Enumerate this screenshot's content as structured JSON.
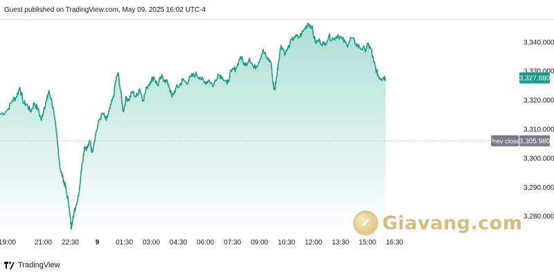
{
  "header": {
    "published": "Guest published on TradingView.com, May 09, 2025 16:02 UTC-4"
  },
  "footer": {
    "brand": "TradingView"
  },
  "watermark": {
    "text": "Giavang.com"
  },
  "colors": {
    "line": "#1a9a8a",
    "fill_top": "#9fd9cd",
    "fill_bottom": "#ffffff",
    "current_label_bg": "#1a9a8a",
    "prev_close_label_bg": "#787b86",
    "prev_close_line": "#b2b5be",
    "axis_text": "#131722"
  },
  "chart_data": {
    "type": "area",
    "title": "",
    "xlabel": "",
    "ylabel": "",
    "ylim": [
      3273.6,
      3347.6
    ],
    "y_ticks": [
      3280,
      3290,
      3300,
      3310,
      3320,
      3330,
      3340
    ],
    "y_tick_labels": [
      "3,280.000",
      "3,290.000",
      "3,300.000",
      "3,310.000",
      "3,320.000",
      "3,330.000",
      "3,340.000"
    ],
    "x_range_hours": [
      -5.4,
      22.2
    ],
    "x_ticks": [
      {
        "label": "19:00",
        "hour": -5
      },
      {
        "label": "21:00",
        "hour": -3
      },
      {
        "label": "22:30",
        "hour": -1.5
      },
      {
        "label": "9",
        "hour": 0
      },
      {
        "label": "01:30",
        "hour": 1.5
      },
      {
        "label": "03:00",
        "hour": 3
      },
      {
        "label": "04:30",
        "hour": 4.5
      },
      {
        "label": "06:00",
        "hour": 6
      },
      {
        "label": "07:30",
        "hour": 7.5
      },
      {
        "label": "09:00",
        "hour": 9
      },
      {
        "label": "10:30",
        "hour": 10.5
      },
      {
        "label": "12:00",
        "hour": 12
      },
      {
        "label": "13:30",
        "hour": 13.5
      },
      {
        "label": "15:00",
        "hour": 15
      },
      {
        "label": "16:30",
        "hour": 16.5
      }
    ],
    "series": [
      {
        "name": "",
        "points": [
          [
            -5.4,
            3315.0
          ],
          [
            -5.0,
            3316.5
          ],
          [
            -4.7,
            3320.0
          ],
          [
            -4.5,
            3321.0
          ],
          [
            -4.3,
            3324.5
          ],
          [
            -4.1,
            3319.0
          ],
          [
            -3.9,
            3318.5
          ],
          [
            -3.7,
            3316.0
          ],
          [
            -3.5,
            3319.0
          ],
          [
            -3.3,
            3317.0
          ],
          [
            -3.1,
            3313.0
          ],
          [
            -2.95,
            3317.5
          ],
          [
            -2.8,
            3320.0
          ],
          [
            -2.7,
            3323.0
          ],
          [
            -2.55,
            3320.5
          ],
          [
            -2.4,
            3315.0
          ],
          [
            -2.2,
            3305.0
          ],
          [
            -2.05,
            3296.0
          ],
          [
            -1.9,
            3293.0
          ],
          [
            -1.8,
            3291.0
          ],
          [
            -1.7,
            3288.0
          ],
          [
            -1.55,
            3283.0
          ],
          [
            -1.45,
            3275.5
          ],
          [
            -1.35,
            3280.0
          ],
          [
            -1.2,
            3283.0
          ],
          [
            -1.0,
            3289.0
          ],
          [
            -0.85,
            3298.0
          ],
          [
            -0.7,
            3304.0
          ],
          [
            -0.55,
            3303.5
          ],
          [
            -0.4,
            3306.0
          ],
          [
            -0.3,
            3302.0
          ],
          [
            -0.1,
            3308.0
          ],
          [
            0.1,
            3313.0
          ],
          [
            0.3,
            3315.5
          ],
          [
            0.5,
            3313.0
          ],
          [
            0.7,
            3317.0
          ],
          [
            0.9,
            3321.0
          ],
          [
            1.0,
            3326.0
          ],
          [
            1.15,
            3329.5
          ],
          [
            1.3,
            3323.0
          ],
          [
            1.45,
            3316.0
          ],
          [
            1.6,
            3321.0
          ],
          [
            1.75,
            3320.0
          ],
          [
            1.95,
            3323.0
          ],
          [
            2.15,
            3321.0
          ],
          [
            2.35,
            3324.0
          ],
          [
            2.55,
            3320.0
          ],
          [
            2.75,
            3324.5
          ],
          [
            2.95,
            3326.5
          ],
          [
            3.15,
            3328.0
          ],
          [
            3.35,
            3325.0
          ],
          [
            3.55,
            3328.0
          ],
          [
            3.75,
            3327.0
          ],
          [
            3.95,
            3325.5
          ],
          [
            4.15,
            3321.0
          ],
          [
            4.35,
            3324.0
          ],
          [
            4.55,
            3325.0
          ],
          [
            4.75,
            3327.0
          ],
          [
            4.95,
            3326.0
          ],
          [
            5.2,
            3328.0
          ],
          [
            5.45,
            3329.0
          ],
          [
            5.7,
            3328.0
          ],
          [
            5.95,
            3326.0
          ],
          [
            6.2,
            3327.0
          ],
          [
            6.45,
            3325.0
          ],
          [
            6.7,
            3329.0
          ],
          [
            6.95,
            3328.0
          ],
          [
            7.2,
            3325.5
          ],
          [
            7.45,
            3330.0
          ],
          [
            7.7,
            3331.0
          ],
          [
            7.95,
            3335.0
          ],
          [
            8.2,
            3332.0
          ],
          [
            8.45,
            3334.5
          ],
          [
            8.7,
            3331.0
          ],
          [
            8.95,
            3333.0
          ],
          [
            9.2,
            3337.5
          ],
          [
            9.45,
            3334.0
          ],
          [
            9.65,
            3333.0
          ],
          [
            9.75,
            3326.0
          ],
          [
            9.85,
            3323.5
          ],
          [
            9.95,
            3328.0
          ],
          [
            10.05,
            3333.0
          ],
          [
            10.2,
            3339.0
          ],
          [
            10.45,
            3336.0
          ],
          [
            10.7,
            3339.5
          ],
          [
            10.95,
            3342.0
          ],
          [
            11.2,
            3341.5
          ],
          [
            11.45,
            3344.0
          ],
          [
            11.7,
            3346.5
          ],
          [
            11.9,
            3345.5
          ],
          [
            12.1,
            3340.0
          ],
          [
            12.35,
            3340.5
          ],
          [
            12.6,
            3339.0
          ],
          [
            12.85,
            3342.0
          ],
          [
            13.1,
            3341.0
          ],
          [
            13.35,
            3342.5
          ],
          [
            13.6,
            3341.0
          ],
          [
            13.85,
            3339.0
          ],
          [
            14.1,
            3341.5
          ],
          [
            14.35,
            3339.5
          ],
          [
            14.6,
            3338.0
          ],
          [
            14.85,
            3337.5
          ],
          [
            15.05,
            3339.0
          ],
          [
            15.2,
            3337.5
          ],
          [
            15.35,
            3333.0
          ],
          [
            15.5,
            3330.0
          ],
          [
            15.6,
            3328.5
          ],
          [
            15.75,
            3327.5
          ],
          [
            15.9,
            3328.0
          ],
          [
            16.0,
            3327.68
          ]
        ]
      }
    ],
    "current_value_label": "3,327.680",
    "prev_close": 3305.98,
    "prev_close_title": "Prev close",
    "prev_close_label": "3,305.980",
    "grid": false,
    "legend": "none"
  }
}
